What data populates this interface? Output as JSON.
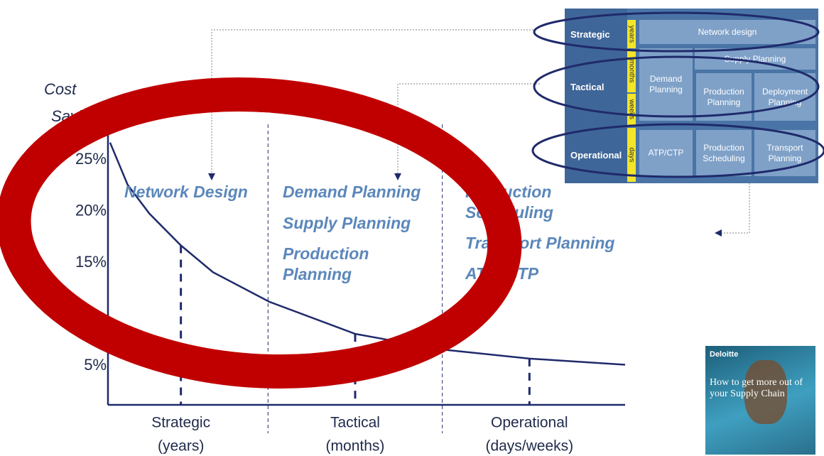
{
  "chart_data": {
    "type": "line",
    "ylabel": [
      "Cost",
      "Savings"
    ],
    "x": [
      0.4,
      3.8,
      8,
      14.1,
      20.3,
      31.3,
      47.8,
      64.3,
      81.5,
      100
    ],
    "series": [
      {
        "color": "#1f2a6b",
        "values": [
          26.7,
          22.6,
          19.8,
          16.7,
          14.1,
          11.2,
          8.1,
          6.6,
          5.7,
          5.1
        ]
      }
    ],
    "xlim": [
      0,
      100
    ],
    "ylim": [
      1.2,
      30.2
    ],
    "yticks": [
      {
        "value": 25,
        "label": "25%"
      },
      {
        "value": 20,
        "label": "20%"
      },
      {
        "value": 15,
        "label": "15%"
      },
      {
        "value": 5,
        "label": "5%"
      }
    ],
    "categories": [
      "Strategic",
      "Tactical",
      "Operational"
    ],
    "category_sublabels": [
      "(years)",
      "(months)",
      "(days/weeks)"
    ],
    "category_x": [
      14.1,
      47.8,
      81.5
    ],
    "annotations": [
      [
        "Network Design"
      ],
      [
        "Demand Planning",
        "Supply Planning",
        "Production Planning"
      ],
      [
        "Production Scheduling",
        "Transport Planning",
        "ATP/ CTP"
      ]
    ]
  },
  "diagram": {
    "rows": [
      "Strategic",
      "Tactical",
      "Operational"
    ],
    "horizons": [
      "years",
      "months",
      "weeks",
      "days"
    ],
    "boxes": [
      "Network design",
      "Supply Planning",
      "Demand Planning",
      "Production Planning",
      "Deployment Planning",
      "ATP/CTP",
      "Production Scheduling",
      "Transport Planning"
    ]
  },
  "book": {
    "brand": "Deloitte",
    "title": "How to get more out of your Supply Chain"
  }
}
